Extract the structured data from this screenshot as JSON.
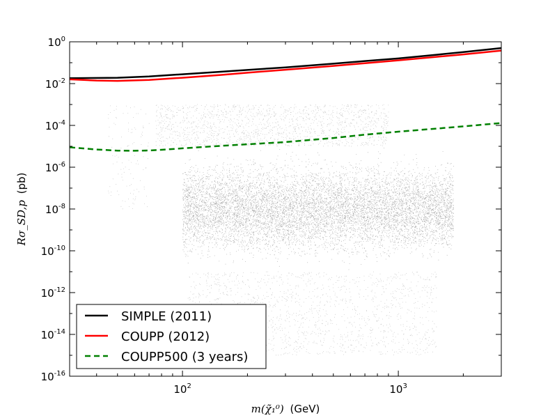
{
  "chart_data": {
    "type": "scatter",
    "title": "",
    "xlabel": {
      "math": "m(χ̃₁⁰)",
      "unit": "(GeV)"
    },
    "ylabel": {
      "math": "Rσ_SD,p",
      "unit": "(pb)"
    },
    "xscale": "log",
    "yscale": "log",
    "xlim": [
      30,
      3000
    ],
    "ylim": [
      1e-16,
      1
    ],
    "x_ticks": [
      {
        "value": 100,
        "base": "10",
        "exp": "2"
      },
      {
        "value": 1000,
        "base": "10",
        "exp": "3"
      }
    ],
    "y_ticks": [
      {
        "value": 1e-16,
        "base": "10",
        "exp": "-16"
      },
      {
        "value": 1e-14,
        "base": "10",
        "exp": "-14"
      },
      {
        "value": 1e-12,
        "base": "10",
        "exp": "-12"
      },
      {
        "value": 1e-10,
        "base": "10",
        "exp": "-10"
      },
      {
        "value": 1e-08,
        "base": "10",
        "exp": "-8"
      },
      {
        "value": 1e-06,
        "base": "10",
        "exp": "-6"
      },
      {
        "value": 0.0001,
        "base": "10",
        "exp": "-4"
      },
      {
        "value": 0.01,
        "base": "10",
        "exp": "-2"
      },
      {
        "value": 1,
        "base": "10",
        "exp": "0"
      }
    ],
    "series": [
      {
        "name": "SIMPLE (2011)",
        "style": "line",
        "color": "#000000",
        "dash": "solid",
        "x": [
          30,
          50,
          70,
          100,
          150,
          200,
          300,
          500,
          700,
          1000,
          1500,
          2000,
          3000
        ],
        "y": [
          0.018,
          0.019,
          0.022,
          0.028,
          0.037,
          0.045,
          0.06,
          0.09,
          0.12,
          0.16,
          0.24,
          0.32,
          0.5
        ]
      },
      {
        "name": "COUPP (2012)",
        "style": "line",
        "color": "#ff0000",
        "dash": "solid",
        "x": [
          30,
          40,
          50,
          70,
          100,
          150,
          200,
          300,
          500,
          700,
          1000,
          1500,
          2000,
          3000
        ],
        "y": [
          0.016,
          0.014,
          0.0135,
          0.015,
          0.019,
          0.026,
          0.033,
          0.046,
          0.07,
          0.095,
          0.13,
          0.19,
          0.25,
          0.38
        ]
      },
      {
        "name": "COUPP500 (3 years)",
        "style": "line",
        "color": "#008000",
        "dash": "dashed",
        "x": [
          30,
          40,
          50,
          60,
          70,
          80,
          100,
          150,
          200,
          300,
          500,
          700,
          1000,
          1500,
          2000,
          3000
        ],
        "y": [
          9e-06,
          7e-06,
          6.2e-06,
          6.1e-06,
          6.3e-06,
          6.8e-06,
          8e-06,
          1.05e-05,
          1.25e-05,
          1.6e-05,
          2.5e-05,
          3.6e-05,
          5e-05,
          7e-05,
          9e-05,
          0.00013
        ]
      }
    ],
    "scan_points": {
      "description": "dense cloud of model scan points",
      "color": "#000000",
      "regions": [
        {
          "x": [
            100,
            1800
          ],
          "y": [
            1e-11,
            1e-05
          ],
          "density": "high"
        },
        {
          "x": [
            105,
            1500
          ],
          "y": [
            1e-15,
            1e-11
          ],
          "density": "low"
        },
        {
          "x": [
            75,
            900
          ],
          "y": [
            1e-05,
            0.001
          ],
          "density": "low"
        },
        {
          "x": [
            45,
            70
          ],
          "y": [
            1e-08,
            0.001
          ],
          "density": "sparse"
        }
      ]
    },
    "legend": {
      "placement": "lower-left",
      "entries": [
        "SIMPLE (2011)",
        "COUPP (2012)",
        "COUPP500 (3 years)"
      ]
    },
    "grid": false
  }
}
